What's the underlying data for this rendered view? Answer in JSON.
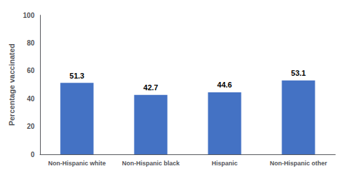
{
  "chart_data": {
    "type": "bar",
    "ylabel": "Percentage vaccinated",
    "categories": [
      "Non-Hispanic white",
      "Non-Hispanic black",
      "Hispanic",
      "Non-Hispanic other"
    ],
    "values": [
      51.3,
      42.7,
      44.6,
      53.1
    ],
    "color": "#4472C4",
    "ylim": [
      0,
      100
    ],
    "yticks": [
      0,
      20,
      40,
      60,
      80,
      100
    ],
    "data_labels": true,
    "grid": false
  }
}
